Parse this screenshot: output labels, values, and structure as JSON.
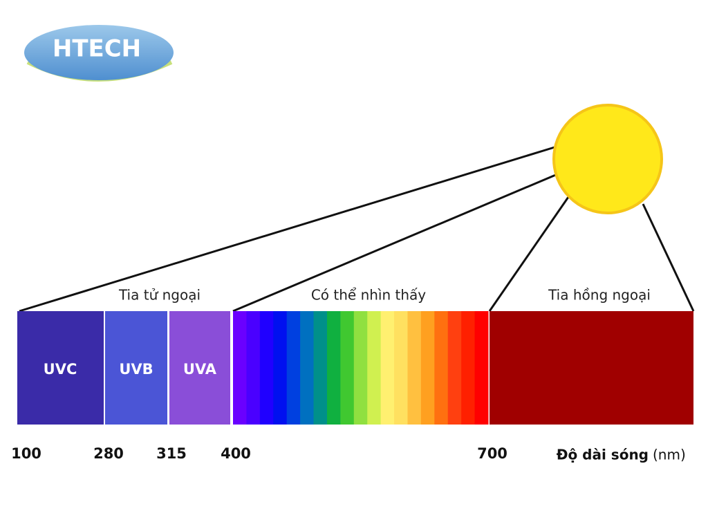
{
  "logo": {
    "text": "HTECH"
  },
  "groups": [
    "Tia tử ngoại",
    "Có thể nhìn thấy",
    "Tia hồng ngoại"
  ],
  "bands": [
    "UVC",
    "UVB",
    "UVA"
  ],
  "ticks": [
    "100",
    "280",
    "315",
    "400",
    "700"
  ],
  "axis": {
    "label": "Độ dài sóng",
    "unit": "(nm)"
  }
}
